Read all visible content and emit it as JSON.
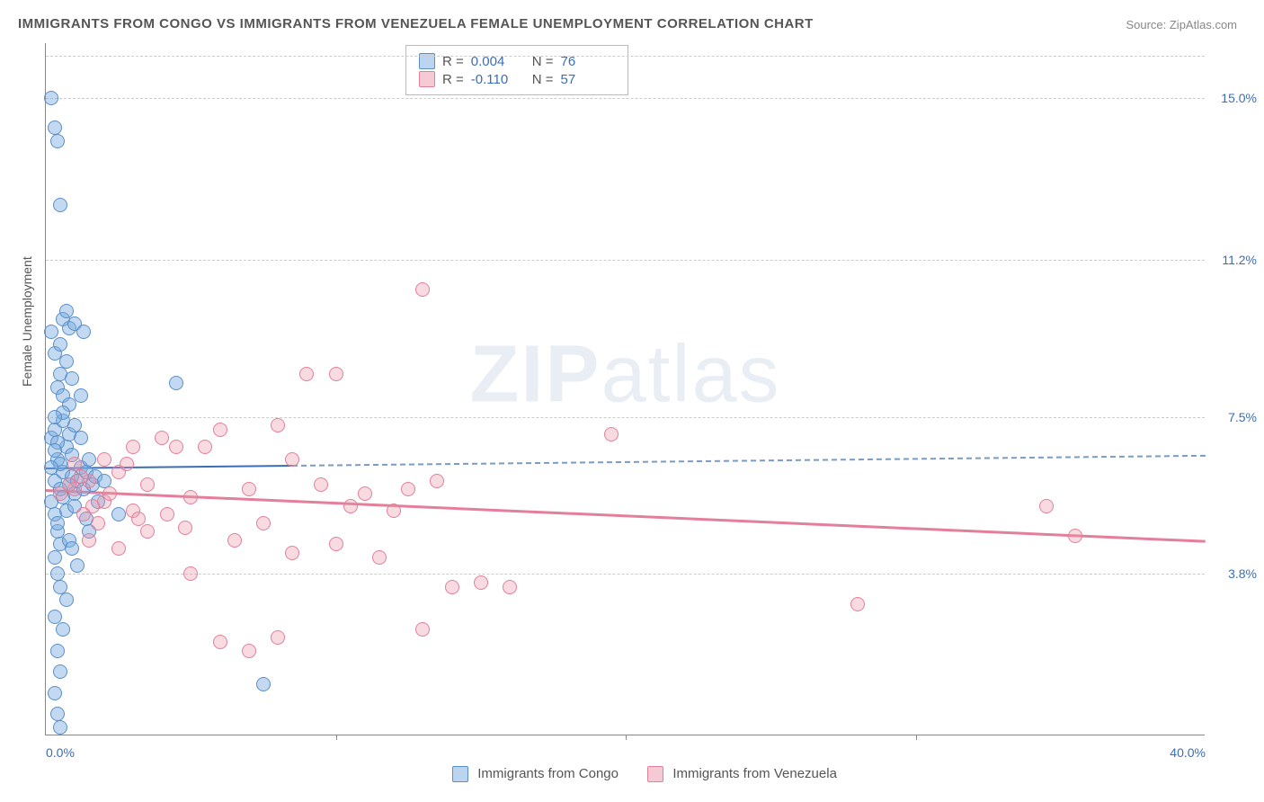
{
  "title": "IMMIGRANTS FROM CONGO VS IMMIGRANTS FROM VENEZUELA FEMALE UNEMPLOYMENT CORRELATION CHART",
  "source": "Source: ZipAtlas.com",
  "ylabel": "Female Unemployment",
  "watermark_zip": "ZIP",
  "watermark_atlas": "atlas",
  "chart": {
    "type": "scatter",
    "xlim": [
      0,
      40
    ],
    "ylim": [
      0,
      16.3
    ],
    "xticks": [
      {
        "v": 0,
        "label": "0.0%"
      },
      {
        "v": 40,
        "label": "40.0%"
      }
    ],
    "yticks": [
      {
        "v": 3.8,
        "label": "3.8%"
      },
      {
        "v": 7.5,
        "label": "7.5%"
      },
      {
        "v": 11.2,
        "label": "11.2%"
      },
      {
        "v": 15.0,
        "label": "15.0%"
      }
    ],
    "vticks_x": [
      10,
      20,
      30
    ],
    "gridlines_y": [
      3.8,
      7.5,
      11.2,
      15.0,
      16.0
    ],
    "background_color": "#ffffff",
    "grid_color": "#cccccc",
    "series": [
      {
        "name": "Immigrants from Congo",
        "color_key": "blue",
        "fill": "rgba(120,170,225,0.45)",
        "stroke": "#5a8fc9",
        "R": "0.004",
        "N": "76",
        "regression": {
          "x1": 0,
          "y1": 6.3,
          "x2": 40,
          "y2": 6.6,
          "solid_until_x": 8.5
        },
        "points": [
          [
            0.2,
            5.5
          ],
          [
            0.3,
            6.0
          ],
          [
            0.4,
            6.5
          ],
          [
            0.2,
            7.0
          ],
          [
            0.5,
            5.8
          ],
          [
            0.6,
            6.2
          ],
          [
            0.3,
            5.2
          ],
          [
            0.4,
            4.8
          ],
          [
            0.7,
            6.8
          ],
          [
            0.8,
            5.9
          ],
          [
            0.5,
            6.4
          ],
          [
            0.6,
            5.6
          ],
          [
            0.3,
            7.2
          ],
          [
            0.9,
            6.1
          ],
          [
            1.0,
            5.7
          ],
          [
            0.4,
            6.9
          ],
          [
            1.2,
            6.3
          ],
          [
            0.7,
            5.3
          ],
          [
            0.8,
            7.1
          ],
          [
            1.1,
            6.0
          ],
          [
            0.5,
            4.5
          ],
          [
            1.3,
            5.8
          ],
          [
            0.9,
            6.6
          ],
          [
            1.4,
            6.2
          ],
          [
            0.6,
            7.4
          ],
          [
            1.0,
            5.4
          ],
          [
            1.5,
            6.5
          ],
          [
            0.3,
            4.2
          ],
          [
            1.6,
            5.9
          ],
          [
            0.8,
            4.6
          ],
          [
            1.2,
            7.0
          ],
          [
            0.4,
            3.8
          ],
          [
            1.7,
            6.1
          ],
          [
            0.5,
            3.5
          ],
          [
            0.7,
            3.2
          ],
          [
            0.3,
            2.8
          ],
          [
            0.6,
            2.5
          ],
          [
            0.4,
            2.0
          ],
          [
            0.5,
            1.5
          ],
          [
            0.3,
            1.0
          ],
          [
            0.4,
            0.5
          ],
          [
            0.2,
            9.5
          ],
          [
            0.6,
            9.8
          ],
          [
            0.8,
            9.6
          ],
          [
            0.3,
            9.0
          ],
          [
            0.5,
            8.5
          ],
          [
            0.7,
            8.8
          ],
          [
            0.4,
            8.2
          ],
          [
            0.6,
            8.0
          ],
          [
            0.2,
            15.0
          ],
          [
            0.3,
            14.3
          ],
          [
            0.4,
            14.0
          ],
          [
            0.5,
            12.5
          ],
          [
            1.0,
            9.7
          ],
          [
            1.3,
            9.5
          ],
          [
            4.5,
            8.3
          ],
          [
            1.8,
            5.5
          ],
          [
            2.0,
            6.0
          ],
          [
            1.5,
            4.8
          ],
          [
            2.5,
            5.2
          ],
          [
            0.9,
            4.4
          ],
          [
            1.1,
            4.0
          ],
          [
            0.7,
            10.0
          ],
          [
            0.5,
            9.2
          ],
          [
            0.8,
            7.8
          ],
          [
            1.0,
            7.3
          ],
          [
            0.6,
            7.6
          ],
          [
            0.3,
            6.7
          ],
          [
            1.4,
            5.1
          ],
          [
            0.2,
            6.3
          ],
          [
            0.4,
            5.0
          ],
          [
            0.5,
            0.2
          ],
          [
            7.5,
            1.2
          ],
          [
            0.3,
            7.5
          ],
          [
            0.9,
            8.4
          ],
          [
            1.2,
            8.0
          ]
        ]
      },
      {
        "name": "Immigrants from Venezuela",
        "color_key": "pink",
        "fill": "rgba(235,150,170,0.35)",
        "stroke": "#e37f9a",
        "R": "-0.110",
        "N": "57",
        "regression": {
          "x1": 0,
          "y1": 5.8,
          "x2": 40,
          "y2": 4.6,
          "solid_until_x": 40
        },
        "points": [
          [
            1.0,
            5.8
          ],
          [
            1.5,
            6.0
          ],
          [
            2.0,
            5.5
          ],
          [
            2.5,
            6.2
          ],
          [
            3.0,
            5.3
          ],
          [
            3.5,
            5.9
          ],
          [
            1.8,
            5.0
          ],
          [
            2.2,
            5.7
          ],
          [
            2.8,
            6.4
          ],
          [
            3.2,
            5.1
          ],
          [
            1.2,
            6.1
          ],
          [
            1.6,
            5.4
          ],
          [
            4.0,
            7.0
          ],
          [
            4.5,
            6.8
          ],
          [
            5.0,
            5.6
          ],
          [
            5.5,
            6.8
          ],
          [
            6.0,
            7.2
          ],
          [
            7.0,
            5.8
          ],
          [
            8.0,
            7.3
          ],
          [
            9.0,
            8.5
          ],
          [
            10.0,
            8.5
          ],
          [
            13.0,
            10.5
          ],
          [
            8.5,
            6.5
          ],
          [
            9.5,
            5.9
          ],
          [
            10.5,
            5.4
          ],
          [
            11.0,
            5.7
          ],
          [
            12.0,
            5.3
          ],
          [
            13.5,
            6.0
          ],
          [
            14.0,
            3.5
          ],
          [
            15.0,
            3.6
          ],
          [
            16.0,
            3.5
          ],
          [
            5.0,
            3.8
          ],
          [
            6.0,
            2.2
          ],
          [
            7.0,
            2.0
          ],
          [
            8.0,
            2.3
          ],
          [
            13.0,
            2.5
          ],
          [
            4.2,
            5.2
          ],
          [
            4.8,
            4.9
          ],
          [
            6.5,
            4.6
          ],
          [
            7.5,
            5.0
          ],
          [
            8.5,
            4.3
          ],
          [
            10.0,
            4.5
          ],
          [
            11.5,
            4.2
          ],
          [
            12.5,
            5.8
          ],
          [
            19.5,
            7.1
          ],
          [
            28.0,
            3.1
          ],
          [
            34.5,
            5.4
          ],
          [
            35.5,
            4.7
          ],
          [
            2.0,
            6.5
          ],
          [
            3.0,
            6.8
          ],
          [
            1.5,
            4.6
          ],
          [
            2.5,
            4.4
          ],
          [
            3.5,
            4.8
          ],
          [
            0.8,
            5.9
          ],
          [
            0.5,
            5.7
          ],
          [
            1.0,
            6.4
          ],
          [
            1.3,
            5.2
          ]
        ]
      }
    ]
  },
  "legend_top": {
    "R_label": "R =",
    "N_label": "N ="
  },
  "legend_bottom": {
    "series1": "Immigrants from Congo",
    "series2": "Immigrants from Venezuela"
  }
}
